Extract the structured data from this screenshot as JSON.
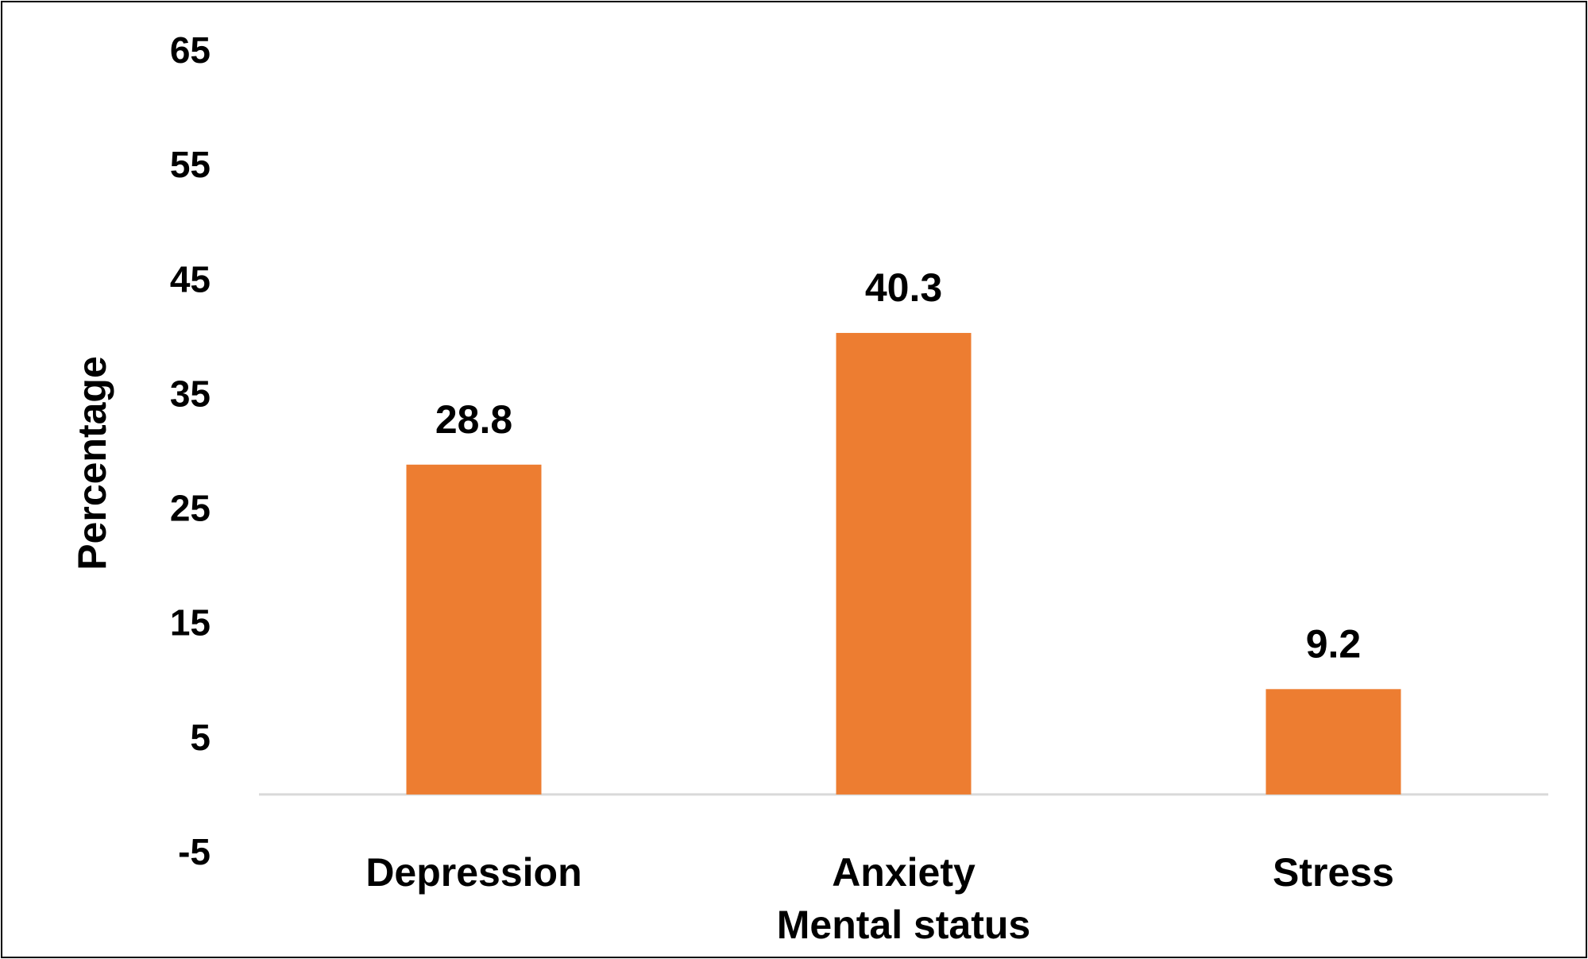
{
  "chart_data": {
    "type": "bar",
    "title": "",
    "xlabel": "Mental status",
    "ylabel": "Percentage",
    "categories": [
      "Depression",
      "Anxiety",
      "Stress"
    ],
    "values": [
      28.8,
      40.3,
      9.2
    ],
    "data_labels": [
      "28.8",
      "40.3",
      "9.2"
    ],
    "ylim": [
      -5,
      65
    ],
    "y_ticks": [
      65,
      55,
      45,
      35,
      25,
      15,
      5,
      -5
    ],
    "y_tick_labels": [
      "65",
      "55",
      "45",
      "35",
      "25",
      "15",
      "5",
      "-5"
    ],
    "baseline": 0,
    "grid": false,
    "legend": "none",
    "bar_color": "#ED7D31",
    "baseline_color": "#D9D9D9",
    "text_color": "#000000",
    "border_color": "#000000"
  }
}
